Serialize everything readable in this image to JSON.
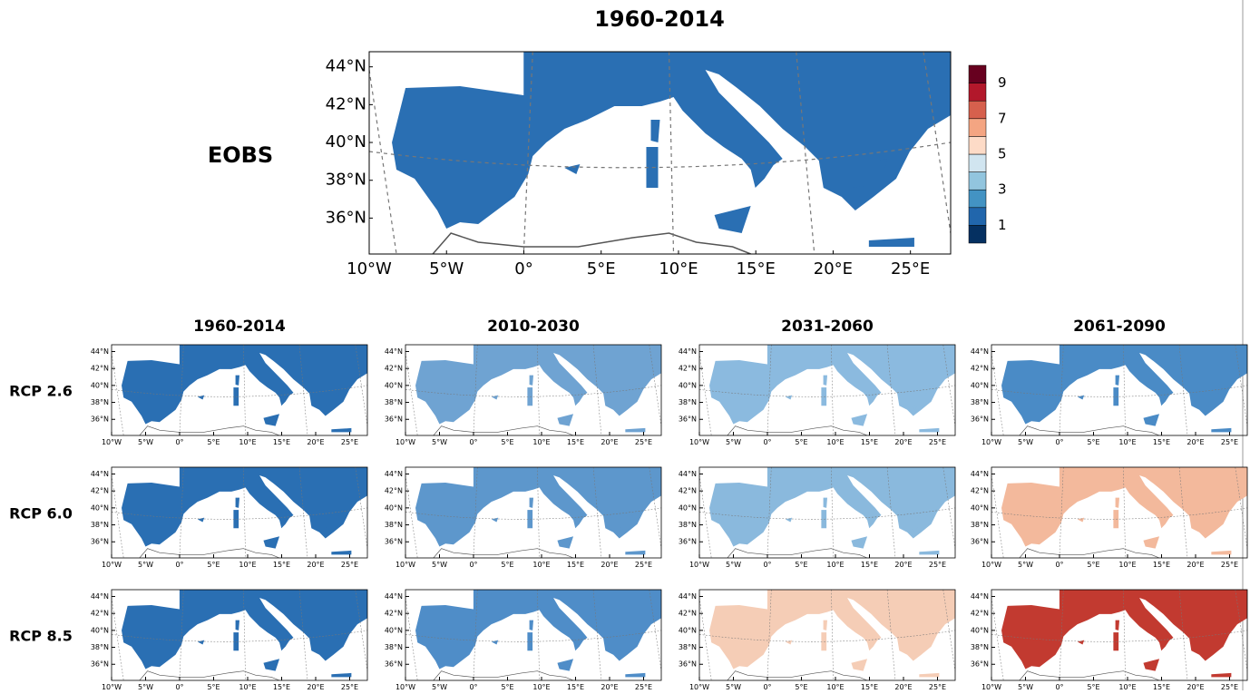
{
  "title": "1960-2014",
  "eobs": {
    "label": "EOBS",
    "color": "#2a6fb3"
  },
  "axes": {
    "lon_lim": [
      -10,
      27.6
    ],
    "lat_lim": [
      34.1,
      44.8
    ],
    "lat_ticks": [
      {
        "value": 44,
        "label": "44°N"
      },
      {
        "value": 42,
        "label": "42°N"
      },
      {
        "value": 40,
        "label": "40°N"
      },
      {
        "value": 38,
        "label": "38°N"
      },
      {
        "value": 36,
        "label": "36°N"
      }
    ],
    "lon_ticks": [
      {
        "value": -10,
        "label": "10°W"
      },
      {
        "value": -5,
        "label": "5°W"
      },
      {
        "value": 0,
        "label": "0°"
      },
      {
        "value": 5,
        "label": "5°E"
      },
      {
        "value": 10,
        "label": "10°E"
      },
      {
        "value": 15,
        "label": "15°E"
      },
      {
        "value": 20,
        "label": "20°E"
      },
      {
        "value": 25,
        "label": "25°E"
      }
    ]
  },
  "colorbar": {
    "lim": [
      0,
      10
    ],
    "ticks": [
      1,
      3,
      5,
      7,
      9
    ],
    "colors": [
      "#053061",
      "#2166ac",
      "#4393c3",
      "#92c5de",
      "#d1e5f0",
      "#fddbc7",
      "#f4a582",
      "#d6604d",
      "#b2182b",
      "#67001f"
    ]
  },
  "columns": [
    "1960-2014",
    "2010-2030",
    "2031-2060",
    "2061-2090"
  ],
  "rows": [
    {
      "label": "RCP 2.6",
      "colors": [
        "#2a6fb3",
        "#6fa3d2",
        "#8bbadf",
        "#4a8bc6"
      ]
    },
    {
      "label": "RCP 6.0",
      "colors": [
        "#2a6fb3",
        "#5d97cc",
        "#8ab9dd",
        "#f3b99c"
      ]
    },
    {
      "label": "RCP 8.5",
      "colors": [
        "#2a6fb3",
        "#4f8dc8",
        "#f5cdb6",
        "#c23a30"
      ]
    }
  ]
}
